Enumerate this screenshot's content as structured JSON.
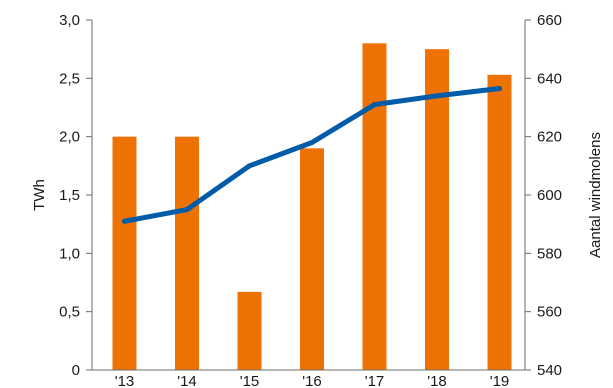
{
  "chart_data": {
    "type": "bar+line",
    "categories": [
      "'13",
      "'14",
      "'15",
      "'16",
      "'17",
      "'18",
      "'19"
    ],
    "series": [
      {
        "type": "bar",
        "axis": "left",
        "values": [
          2.0,
          2.0,
          0.67,
          1.9,
          2.8,
          2.75,
          2.53
        ],
        "color": "#ee7203"
      },
      {
        "type": "line",
        "axis": "right",
        "values": [
          591,
          595,
          610,
          618,
          631,
          634,
          636.5
        ],
        "color": "#005ca9"
      }
    ],
    "y_left": {
      "label": "TWh",
      "min": 0,
      "max": 3.0,
      "ticks": [
        0,
        0.5,
        1.0,
        1.5,
        2.0,
        2.5,
        3.0
      ],
      "tick_labels": [
        "0",
        "0,5",
        "1,0",
        "1,5",
        "2,0",
        "2,5",
        "3,0"
      ]
    },
    "y_right": {
      "label": "Aantal windmolens",
      "min": 540,
      "max": 660,
      "ticks": [
        540,
        560,
        580,
        600,
        620,
        640,
        660
      ],
      "tick_labels": [
        "540",
        "560",
        "580",
        "600",
        "620",
        "640",
        "660"
      ]
    },
    "grid": false,
    "legend": "none"
  }
}
